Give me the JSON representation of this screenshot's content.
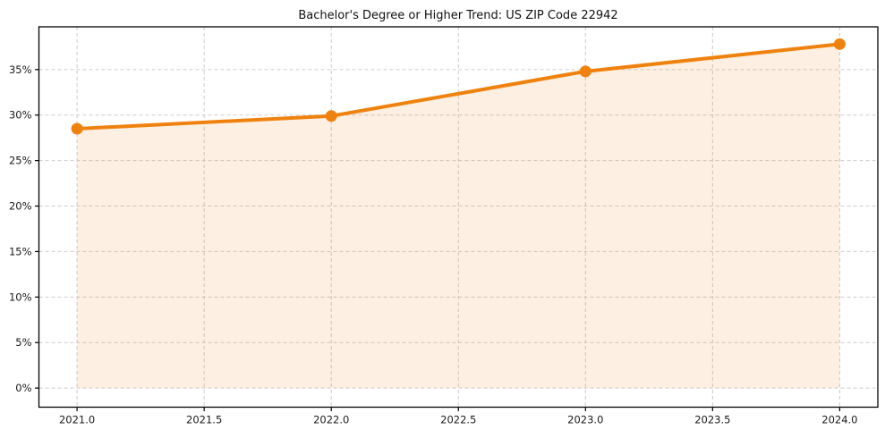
{
  "chart_data": {
    "type": "line",
    "title": "Bachelor's Degree or Higher Trend: US ZIP Code 22942",
    "x": [
      2021,
      2022,
      2023,
      2024
    ],
    "series": [
      {
        "name": "Bachelor's Degree or Higher",
        "values": [
          28.5,
          29.9,
          34.8,
          37.8
        ]
      }
    ],
    "xlabel": "",
    "ylabel": "",
    "xlim": [
      2020.85,
      2024.15
    ],
    "ylim": [
      -2.1,
      39.7
    ],
    "xticks": {
      "values": [
        2021.0,
        2021.5,
        2022.0,
        2022.5,
        2023.0,
        2023.5,
        2024.0
      ],
      "labels": [
        "2021.0",
        "2021.5",
        "2022.0",
        "2022.5",
        "2023.0",
        "2023.5",
        "2024.0"
      ]
    },
    "yticks": {
      "values": [
        0,
        5,
        10,
        15,
        20,
        25,
        30,
        35
      ],
      "labels": [
        "0%",
        "5%",
        "10%",
        "15%",
        "20%",
        "25%",
        "30%",
        "35%"
      ]
    },
    "grid": true,
    "legend": "none",
    "area_fill_baseline": 0,
    "style": {
      "line_color": "#ef820e",
      "marker_color": "#ef820e",
      "fill_color": "#ef820e",
      "fill_opacity": 0.12,
      "grid_color": "#cbcbcb",
      "spine_color": "#000000",
      "background": "#ffffff",
      "line_width": 4,
      "marker_radius": 6.5
    }
  }
}
